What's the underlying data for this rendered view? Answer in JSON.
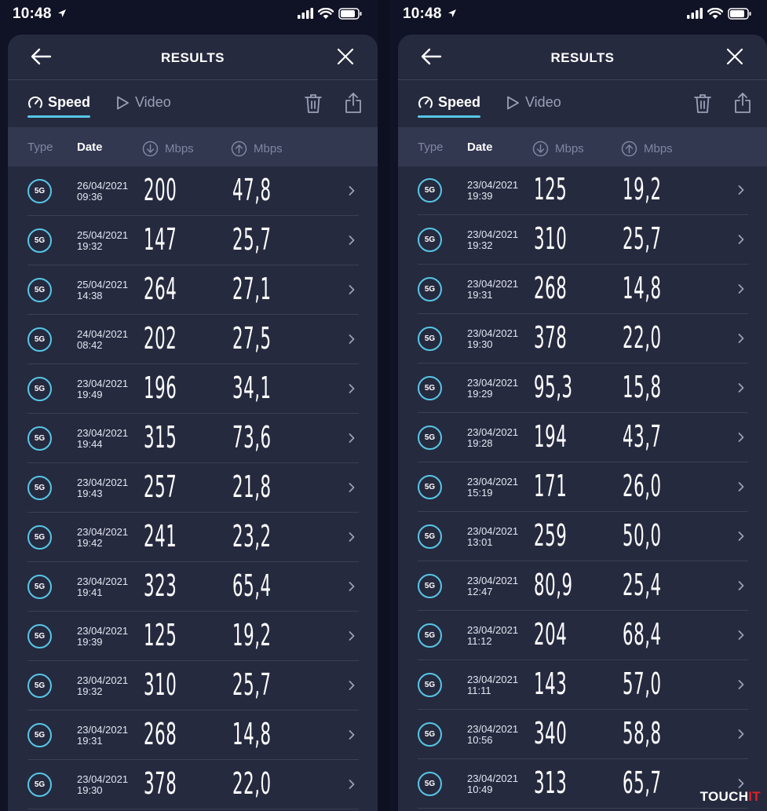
{
  "phones": [
    {
      "status": {
        "time": "10:48"
      },
      "header": {
        "title": "RESULTS"
      },
      "tabs": {
        "speed": "Speed",
        "video": "Video"
      },
      "columns": {
        "type": "Type",
        "date": "Date",
        "download": "Mbps",
        "upload": "Mbps"
      },
      "rows": [
        {
          "badge": "5G",
          "date": "26/04/2021",
          "time": "09:36",
          "down": "200",
          "up": "47,8"
        },
        {
          "badge": "5G",
          "date": "25/04/2021",
          "time": "19:32",
          "down": "147",
          "up": "25,7"
        },
        {
          "badge": "5G",
          "date": "25/04/2021",
          "time": "14:38",
          "down": "264",
          "up": "27,1"
        },
        {
          "badge": "5G",
          "date": "24/04/2021",
          "time": "08:42",
          "down": "202",
          "up": "27,5"
        },
        {
          "badge": "5G",
          "date": "23/04/2021",
          "time": "19:49",
          "down": "196",
          "up": "34,1"
        },
        {
          "badge": "5G",
          "date": "23/04/2021",
          "time": "19:44",
          "down": "315",
          "up": "73,6"
        },
        {
          "badge": "5G",
          "date": "23/04/2021",
          "time": "19:43",
          "down": "257",
          "up": "21,8"
        },
        {
          "badge": "5G",
          "date": "23/04/2021",
          "time": "19:42",
          "down": "241",
          "up": "23,2"
        },
        {
          "badge": "5G",
          "date": "23/04/2021",
          "time": "19:41",
          "down": "323",
          "up": "65,4"
        },
        {
          "badge": "5G",
          "date": "23/04/2021",
          "time": "19:39",
          "down": "125",
          "up": "19,2"
        },
        {
          "badge": "5G",
          "date": "23/04/2021",
          "time": "19:32",
          "down": "310",
          "up": "25,7"
        },
        {
          "badge": "5G",
          "date": "23/04/2021",
          "time": "19:31",
          "down": "268",
          "up": "14,8"
        },
        {
          "badge": "5G",
          "date": "23/04/2021",
          "time": "19:30",
          "down": "378",
          "up": "22,0"
        }
      ]
    },
    {
      "status": {
        "time": "10:48"
      },
      "header": {
        "title": "RESULTS"
      },
      "tabs": {
        "speed": "Speed",
        "video": "Video"
      },
      "columns": {
        "type": "Type",
        "date": "Date",
        "download": "Mbps",
        "upload": "Mbps"
      },
      "rows": [
        {
          "badge": "5G",
          "date": "23/04/2021",
          "time": "19:39",
          "down": "125",
          "up": "19,2"
        },
        {
          "badge": "5G",
          "date": "23/04/2021",
          "time": "19:32",
          "down": "310",
          "up": "25,7"
        },
        {
          "badge": "5G",
          "date": "23/04/2021",
          "time": "19:31",
          "down": "268",
          "up": "14,8"
        },
        {
          "badge": "5G",
          "date": "23/04/2021",
          "time": "19:30",
          "down": "378",
          "up": "22,0"
        },
        {
          "badge": "5G",
          "date": "23/04/2021",
          "time": "19:29",
          "down": "95,3",
          "up": "15,8"
        },
        {
          "badge": "5G",
          "date": "23/04/2021",
          "time": "19:28",
          "down": "194",
          "up": "43,7"
        },
        {
          "badge": "5G",
          "date": "23/04/2021",
          "time": "15:19",
          "down": "171",
          "up": "26,0"
        },
        {
          "badge": "5G",
          "date": "23/04/2021",
          "time": "13:01",
          "down": "259",
          "up": "50,0"
        },
        {
          "badge": "5G",
          "date": "23/04/2021",
          "time": "12:47",
          "down": "80,9",
          "up": "25,4"
        },
        {
          "badge": "5G",
          "date": "23/04/2021",
          "time": "11:12",
          "down": "204",
          "up": "68,4"
        },
        {
          "badge": "5G",
          "date": "23/04/2021",
          "time": "11:11",
          "down": "143",
          "up": "57,0"
        },
        {
          "badge": "5G",
          "date": "23/04/2021",
          "time": "10:56",
          "down": "340",
          "up": "58,8"
        },
        {
          "badge": "5G",
          "date": "23/04/2021",
          "time": "10:49",
          "down": "313",
          "up": "65,7"
        }
      ]
    }
  ],
  "watermark": {
    "part1": "TOUCH",
    "part2": "IT"
  },
  "colors": {
    "accent": "#57c6e6",
    "sheet": "#262a3f",
    "header_row": "#333851",
    "background": "#101325"
  },
  "icons": [
    "location-arrow-icon",
    "signal-icon",
    "wifi-icon",
    "battery-icon",
    "back-arrow-icon",
    "close-icon",
    "speedometer-icon",
    "play-icon",
    "trash-icon",
    "share-icon",
    "download-arrow-icon",
    "upload-arrow-icon",
    "chevron-right-icon"
  ]
}
